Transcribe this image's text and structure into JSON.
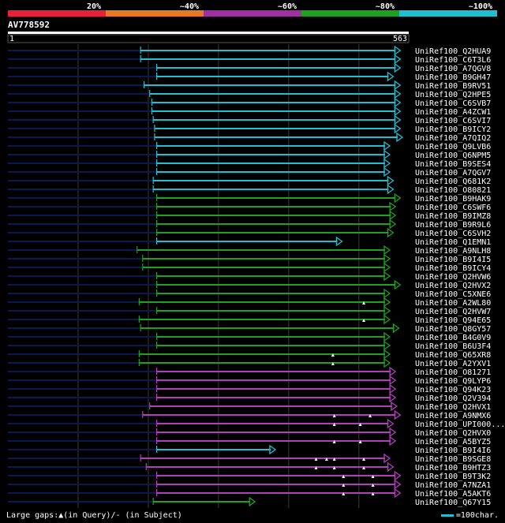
{
  "header": {
    "query_id": "AV778592",
    "query_start": "1",
    "query_end": "563",
    "query_length": 563,
    "identity_scale": [
      {
        "label": "20%",
        "color": "#e8203c"
      },
      {
        "label": "~40%",
        "color": "#e87822"
      },
      {
        "label": "~60%",
        "color": "#a030a0"
      },
      {
        "label": "~80%",
        "color": "#20a020"
      },
      {
        "label": "~100%",
        "color": "#1fbfcf"
      }
    ]
  },
  "colors": {
    "cyan": "#1fbfcf",
    "green": "#20a020",
    "purple": "#b040b8",
    "navy": "#0a1a50",
    "grid": "#3a3a3a"
  },
  "hits": [
    {
      "name": "UniRef100_Q2HUA9",
      "color": "cyan",
      "start": 190,
      "end": 560,
      "gaps": []
    },
    {
      "name": "UniRef100_C6T3L6",
      "color": "cyan",
      "start": 190,
      "end": 560,
      "gaps": []
    },
    {
      "name": "UniRef100_A7QGV8",
      "color": "cyan",
      "start": 213,
      "end": 560,
      "gaps": []
    },
    {
      "name": "UniRef100_B9GH47",
      "color": "cyan",
      "start": 213,
      "end": 550,
      "gaps": []
    },
    {
      "name": "UniRef100_B9RV51",
      "color": "cyan",
      "start": 195,
      "end": 560,
      "gaps": []
    },
    {
      "name": "UniRef100_Q2HPE5",
      "color": "cyan",
      "start": 203,
      "end": 560,
      "gaps": []
    },
    {
      "name": "UniRef100_C6SVB7",
      "color": "cyan",
      "start": 206,
      "end": 560,
      "gaps": []
    },
    {
      "name": "UniRef100_A4ZCW1",
      "color": "cyan",
      "start": 206,
      "end": 560,
      "gaps": []
    },
    {
      "name": "UniRef100_C6SVI7",
      "color": "cyan",
      "start": 208,
      "end": 560,
      "gaps": []
    },
    {
      "name": "UniRef100_B9ICY2",
      "color": "cyan",
      "start": 210,
      "end": 560,
      "gaps": []
    },
    {
      "name": "UniRef100_A7QIQ2",
      "color": "cyan",
      "start": 210,
      "end": 563,
      "gaps": []
    },
    {
      "name": "UniRef100_Q9LVB6",
      "color": "cyan",
      "start": 213,
      "end": 545,
      "gaps": []
    },
    {
      "name": "UniRef100_Q6NPM5",
      "color": "cyan",
      "start": 213,
      "end": 545,
      "gaps": []
    },
    {
      "name": "UniRef100_B9SES4",
      "color": "cyan",
      "start": 213,
      "end": 545,
      "gaps": []
    },
    {
      "name": "UniRef100_A7QGV7",
      "color": "cyan",
      "start": 213,
      "end": 545,
      "gaps": []
    },
    {
      "name": "UniRef100_Q681K2",
      "color": "cyan",
      "start": 208,
      "end": 550,
      "gaps": []
    },
    {
      "name": "UniRef100_O80821",
      "color": "cyan",
      "start": 208,
      "end": 550,
      "gaps": []
    },
    {
      "name": "UniRef100_B9HAK9",
      "color": "green",
      "start": 213,
      "end": 560,
      "gaps": []
    },
    {
      "name": "UniRef100_C6SWF6",
      "color": "green",
      "start": 213,
      "end": 553,
      "gaps": []
    },
    {
      "name": "UniRef100_B9IMZ8",
      "color": "green",
      "start": 213,
      "end": 553,
      "gaps": []
    },
    {
      "name": "UniRef100_B9R9L6",
      "color": "green",
      "start": 213,
      "end": 553,
      "gaps": []
    },
    {
      "name": "UniRef100_C6SVH2",
      "color": "green",
      "start": 213,
      "end": 550,
      "gaps": []
    },
    {
      "name": "UniRef100_Q1EMN1",
      "color": "cyan",
      "start": 213,
      "end": 477,
      "gaps": []
    },
    {
      "name": "UniRef100_A9NLH8",
      "color": "green",
      "start": 185,
      "end": 545,
      "gaps": []
    },
    {
      "name": "UniRef100_B9I4I5",
      "color": "green",
      "start": 193,
      "end": 545,
      "gaps": []
    },
    {
      "name": "UniRef100_B9ICY4",
      "color": "green",
      "start": 193,
      "end": 545,
      "gaps": []
    },
    {
      "name": "UniRef100_Q2HVW6",
      "color": "green",
      "start": 213,
      "end": 545,
      "gaps": []
    },
    {
      "name": "UniRef100_Q2HVX2",
      "color": "green",
      "start": 213,
      "end": 560,
      "gaps": []
    },
    {
      "name": "UniRef100_C5XNE6",
      "color": "green",
      "start": 213,
      "end": 545,
      "gaps": []
    },
    {
      "name": "UniRef100_A2WL80",
      "color": "green",
      "start": 188,
      "end": 545,
      "gaps": [
        508
      ]
    },
    {
      "name": "UniRef100_Q2HVW7",
      "color": "green",
      "start": 213,
      "end": 545,
      "gaps": []
    },
    {
      "name": "UniRef100_Q94E65",
      "color": "green",
      "start": 188,
      "end": 545,
      "gaps": [
        508
      ]
    },
    {
      "name": "UniRef100_Q8GY57",
      "color": "green",
      "start": 190,
      "end": 558,
      "gaps": []
    },
    {
      "name": "UniRef100_B4G0V9",
      "color": "green",
      "start": 213,
      "end": 545,
      "gaps": []
    },
    {
      "name": "UniRef100_B6U3F4",
      "color": "green",
      "start": 213,
      "end": 545,
      "gaps": []
    },
    {
      "name": "UniRef100_Q65XR8",
      "color": "green",
      "start": 188,
      "end": 545,
      "gaps": [
        464
      ]
    },
    {
      "name": "UniRef100_A2YXV1",
      "color": "green",
      "start": 188,
      "end": 545,
      "gaps": [
        464
      ]
    },
    {
      "name": "UniRef100_O81271",
      "color": "purple",
      "start": 213,
      "end": 553,
      "gaps": []
    },
    {
      "name": "UniRef100_Q9LYP6",
      "color": "purple",
      "start": 213,
      "end": 553,
      "gaps": []
    },
    {
      "name": "UniRef100_Q94K23",
      "color": "purple",
      "start": 213,
      "end": 553,
      "gaps": []
    },
    {
      "name": "UniRef100_Q2V394",
      "color": "purple",
      "start": 213,
      "end": 553,
      "gaps": []
    },
    {
      "name": "UniRef100_Q2HVX1",
      "color": "purple",
      "start": 203,
      "end": 555,
      "gaps": []
    },
    {
      "name": "UniRef100_A9NMX6",
      "color": "purple",
      "start": 193,
      "end": 560,
      "gaps": [
        466,
        517
      ]
    },
    {
      "name": "UniRef100_UPI000...",
      "color": "purple",
      "start": 213,
      "end": 550,
      "gaps": [
        466,
        503
      ]
    },
    {
      "name": "UniRef100_Q2HVX0",
      "color": "purple",
      "start": 213,
      "end": 553,
      "gaps": []
    },
    {
      "name": "UniRef100_A5BYZ5",
      "color": "purple",
      "start": 213,
      "end": 553,
      "gaps": [
        466,
        503
      ]
    },
    {
      "name": "UniRef100_B9I4I6",
      "color": "cyan",
      "start": 213,
      "end": 382,
      "gaps": []
    },
    {
      "name": "UniRef100_B9SGE8",
      "color": "purple",
      "start": 190,
      "end": 545,
      "gaps": [
        440,
        455,
        466,
        508
      ]
    },
    {
      "name": "UniRef100_B9HTZ3",
      "color": "purple",
      "start": 198,
      "end": 550,
      "gaps": [
        440,
        466,
        508
      ]
    },
    {
      "name": "UniRef100_B9T3K2",
      "color": "purple",
      "start": 213,
      "end": 560,
      "gaps": [
        479,
        521
      ]
    },
    {
      "name": "UniRef100_A7NZA1",
      "color": "purple",
      "start": 213,
      "end": 560,
      "gaps": [
        479,
        521
      ]
    },
    {
      "name": "UniRef100_A5AKT6",
      "color": "purple",
      "start": 213,
      "end": 560,
      "gaps": [
        479,
        521
      ]
    },
    {
      "name": "UniRef100_Q67Y15",
      "color": "green",
      "start": 208,
      "end": 353,
      "gaps": []
    }
  ],
  "footer": {
    "gap_legend": "Large gaps:▲(in Query)/- (in Subject)",
    "scale_legend": "=100char."
  }
}
